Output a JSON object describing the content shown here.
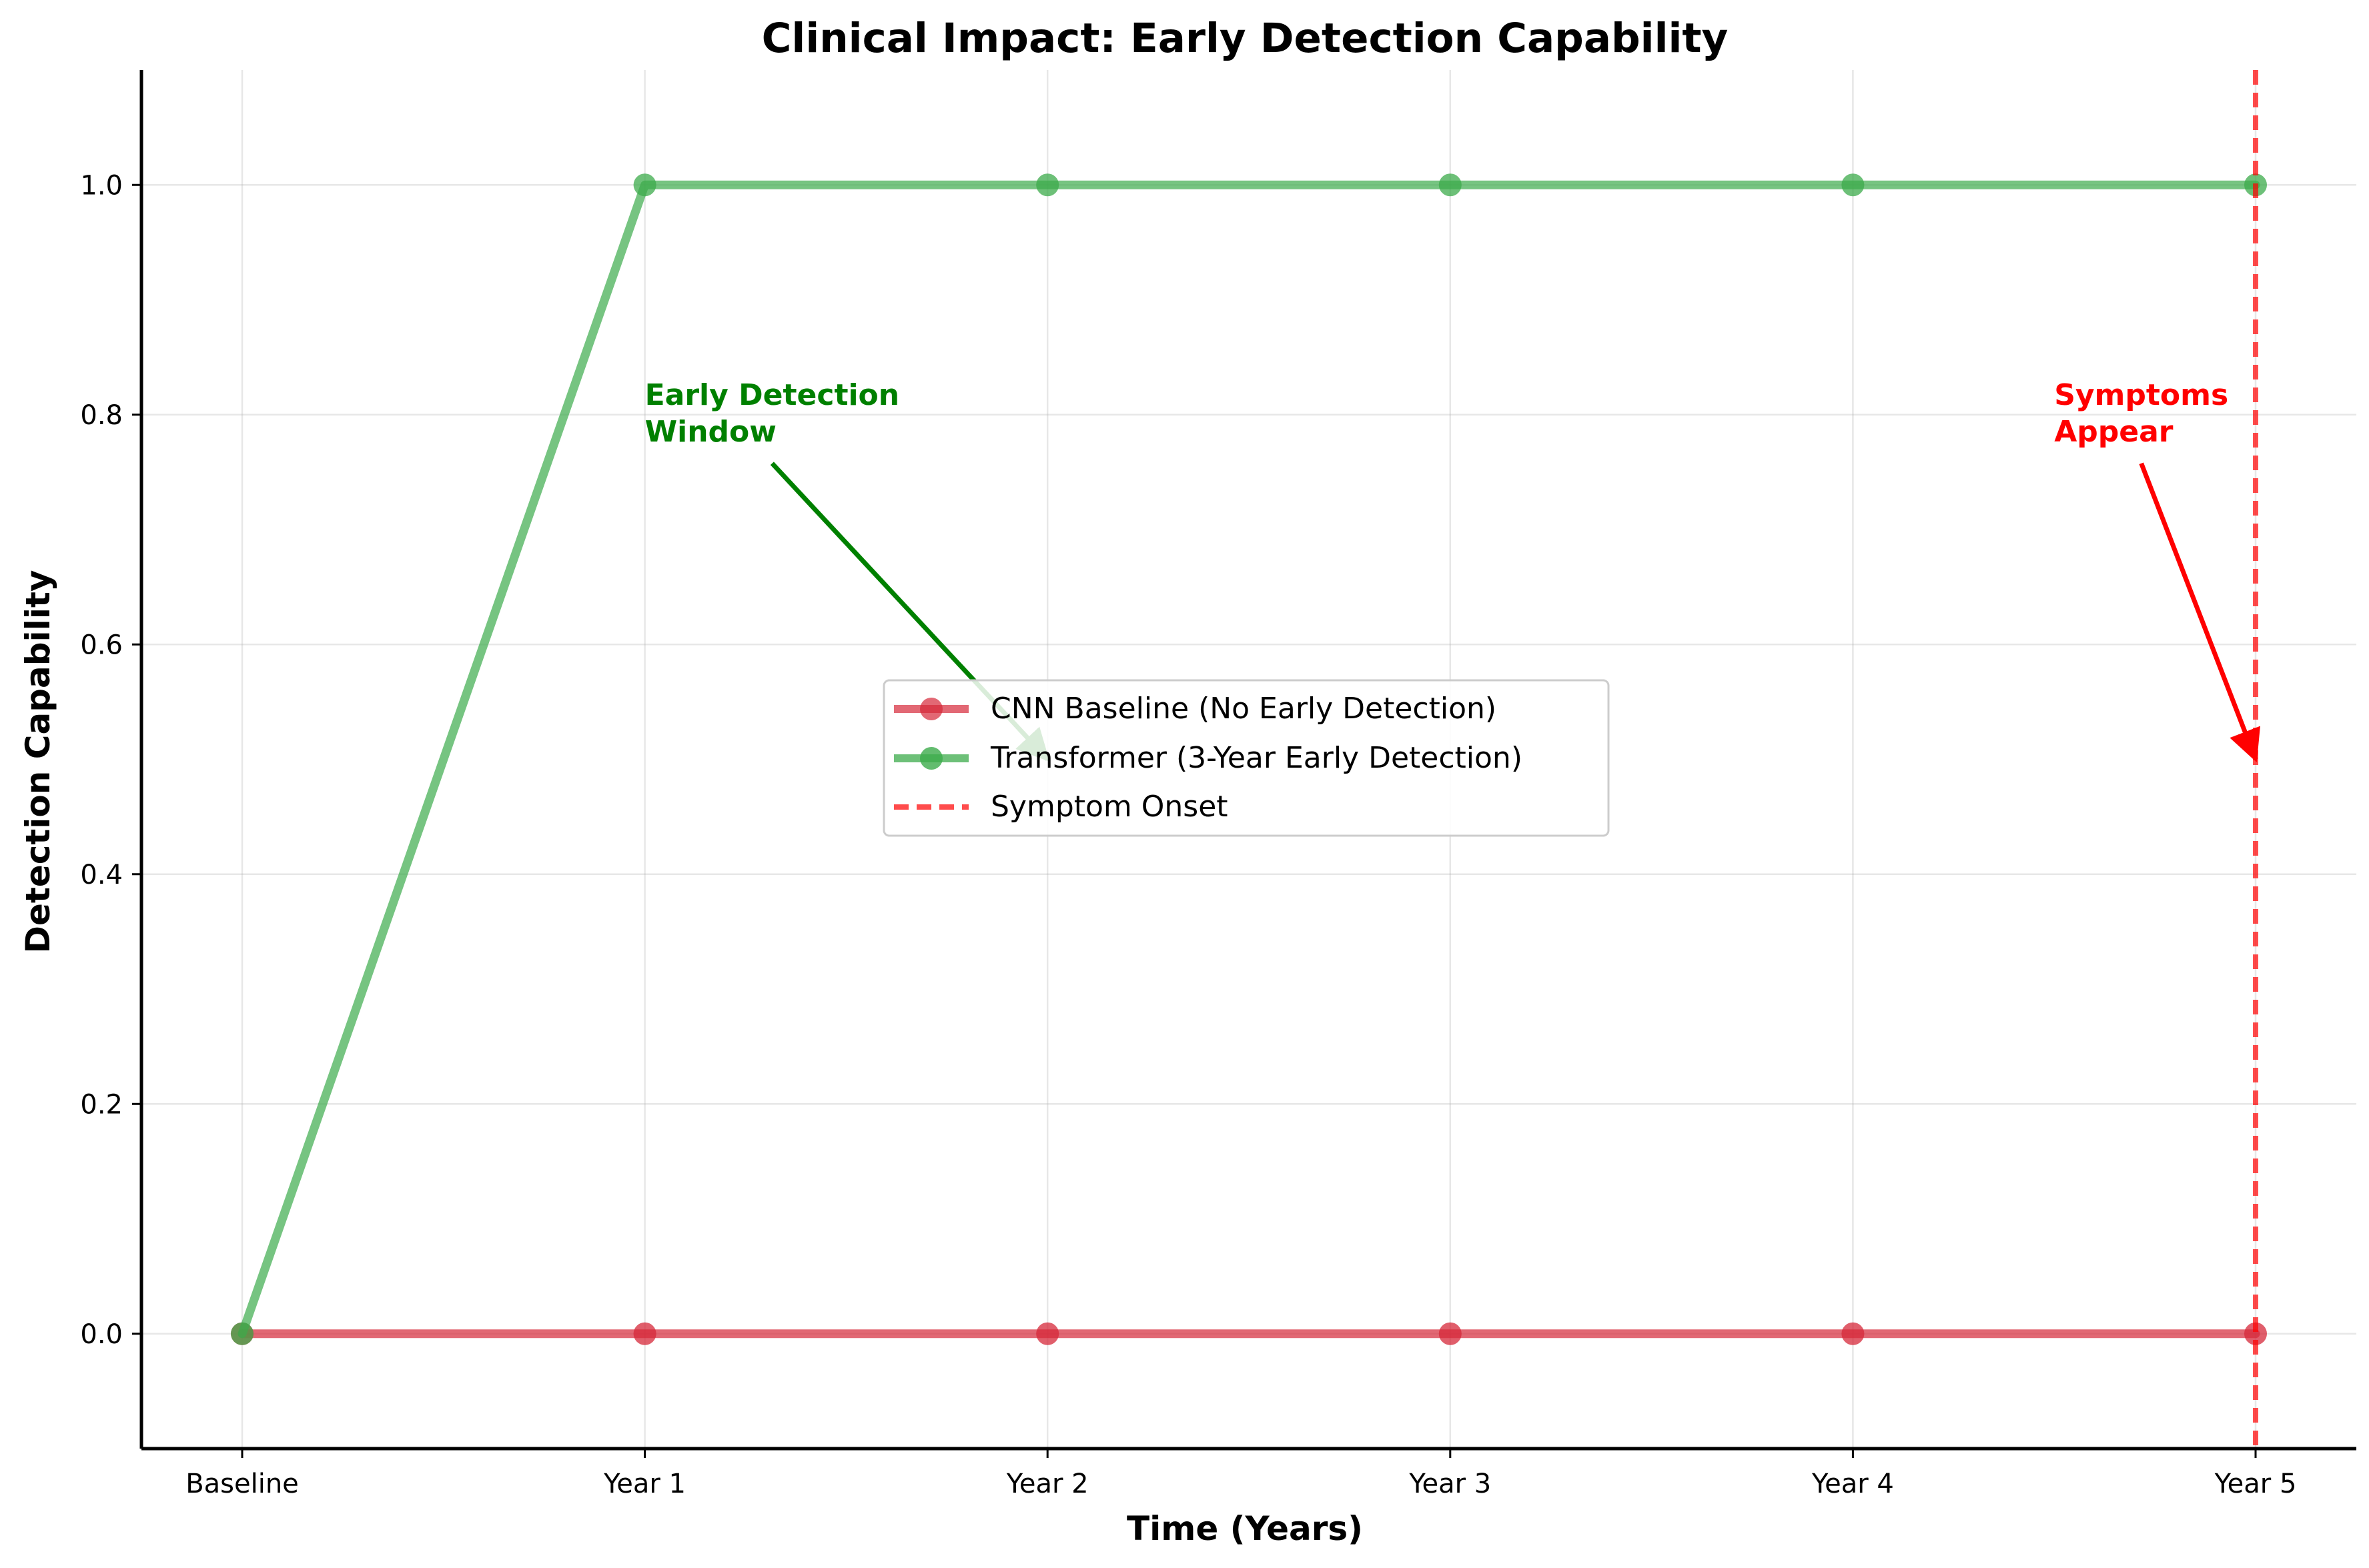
{
  "chart_data": {
    "type": "line",
    "title": "Clinical Impact: Early Detection Capability",
    "xlabel": "Time (Years)",
    "ylabel": "Detection Capability",
    "categories": [
      "Baseline",
      "Year 1",
      "Year 2",
      "Year 3",
      "Year 4",
      "Year 5"
    ],
    "yticks": [
      "0.0",
      "0.2",
      "0.4",
      "0.6",
      "0.8",
      "1.0"
    ],
    "ylim": [
      -0.1,
      1.1
    ],
    "grid": true,
    "legend_position": "center",
    "series": [
      {
        "name": "CNN Baseline (No Early Detection)",
        "values": [
          0,
          0,
          0,
          0,
          0,
          0
        ],
        "color": "#d62839"
      },
      {
        "name": "Transformer (3-Year Early Detection)",
        "values": [
          0,
          1,
          1,
          1,
          1,
          1
        ],
        "color": "#3cab4b"
      }
    ],
    "reference_line": {
      "name": "Symptom Onset",
      "x_index": 5,
      "color": "#ff0000",
      "style": "dashed"
    },
    "annotations": [
      {
        "lines": [
          "Early Detection",
          "Window"
        ],
        "color": "#008000",
        "text_at": [
          1,
          0.8
        ],
        "arrow_to": [
          2,
          0.5
        ]
      },
      {
        "lines": [
          "Symptoms",
          "Appear"
        ],
        "color": "#ff0000",
        "text_at": [
          4.5,
          0.8
        ],
        "arrow_to": [
          5,
          0.5
        ]
      }
    ]
  }
}
